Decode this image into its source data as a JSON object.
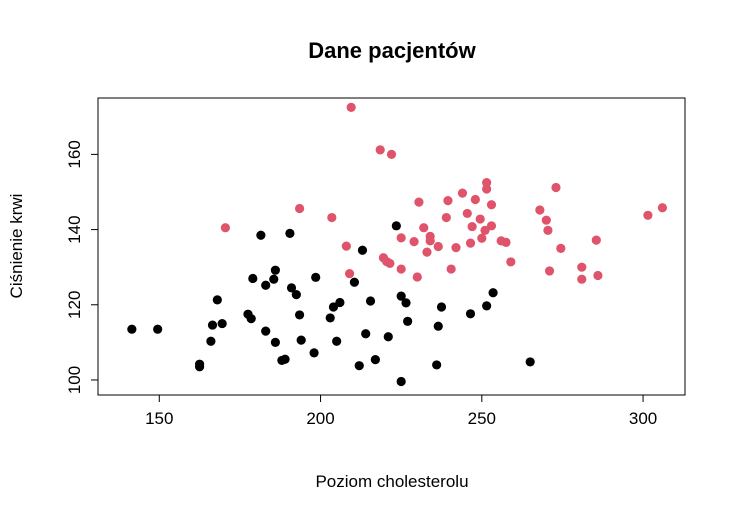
{
  "chart_data": {
    "type": "scatter",
    "title": "Dane pacjentów",
    "xlabel": "Poziom cholesterolu",
    "ylabel": "Ciśnienie krwi",
    "xlim": [
      131,
      313
    ],
    "ylim": [
      96,
      175
    ],
    "xticks": [
      150,
      200,
      250,
      300
    ],
    "yticks": [
      100,
      120,
      140,
      160
    ],
    "grid": false,
    "legend": "none",
    "series": [
      {
        "color": "#000000",
        "points": [
          [
            141.5,
            113.5
          ],
          [
            149.5,
            113.5
          ],
          [
            162.5,
            103.5
          ],
          [
            162.5,
            104.2
          ],
          [
            166,
            110.3
          ],
          [
            166.5,
            114.6
          ],
          [
            168,
            121.3
          ],
          [
            169.5,
            115.0
          ],
          [
            177.5,
            117.5
          ],
          [
            178.5,
            116.3
          ],
          [
            179,
            127.0
          ],
          [
            181.5,
            138.5
          ],
          [
            183,
            125.2
          ],
          [
            183,
            113.0
          ],
          [
            185.5,
            126.8
          ],
          [
            186,
            129.2
          ],
          [
            186,
            110.0
          ],
          [
            188,
            105.2
          ],
          [
            189,
            105.5
          ],
          [
            190.5,
            139.0
          ],
          [
            191,
            124.5
          ],
          [
            192.5,
            122.7
          ],
          [
            193.5,
            117.3
          ],
          [
            194,
            110.6
          ],
          [
            198,
            107.2
          ],
          [
            198.5,
            127.3
          ],
          [
            203,
            116.5
          ],
          [
            204,
            119.4
          ],
          [
            205,
            110.3
          ],
          [
            206,
            120.6
          ],
          [
            210.5,
            126.0
          ],
          [
            212,
            103.8
          ],
          [
            213,
            134.5
          ],
          [
            214,
            112.3
          ],
          [
            215.5,
            121.0
          ],
          [
            217,
            105.4
          ],
          [
            221,
            111.5
          ],
          [
            223.5,
            141.0
          ],
          [
            225,
            122.3
          ],
          [
            225,
            99.6
          ],
          [
            226.5,
            120.5
          ],
          [
            227,
            115.6
          ],
          [
            236,
            104.0
          ],
          [
            236.5,
            114.3
          ],
          [
            237.5,
            119.4
          ],
          [
            246.5,
            117.6
          ],
          [
            251.5,
            119.7
          ],
          [
            253.5,
            123.2
          ],
          [
            265,
            104.8
          ]
        ]
      },
      {
        "color": "#DF536B",
        "points": [
          [
            170.5,
            140.5
          ],
          [
            193.5,
            145.6
          ],
          [
            203.5,
            143.2
          ],
          [
            208,
            135.6
          ],
          [
            209,
            128.3
          ],
          [
            209.5,
            172.5
          ],
          [
            218.5,
            161.2
          ],
          [
            219.5,
            132.5
          ],
          [
            220.5,
            131.5
          ],
          [
            221.5,
            131.0
          ],
          [
            222,
            160.0
          ],
          [
            225,
            137.8
          ],
          [
            225,
            129.5
          ],
          [
            229,
            136.8
          ],
          [
            230,
            127.4
          ],
          [
            230.5,
            147.3
          ],
          [
            232,
            140.5
          ],
          [
            233,
            134.0
          ],
          [
            234,
            138.2
          ],
          [
            234,
            137.0
          ],
          [
            236.5,
            135.5
          ],
          [
            239,
            143.2
          ],
          [
            239.5,
            147.7
          ],
          [
            240.5,
            129.5
          ],
          [
            242,
            135.2
          ],
          [
            244,
            149.7
          ],
          [
            245.5,
            144.3
          ],
          [
            246.5,
            136.4
          ],
          [
            247,
            140.8
          ],
          [
            248,
            148.0
          ],
          [
            249.5,
            142.8
          ],
          [
            250,
            137.7
          ],
          [
            251,
            139.8
          ],
          [
            251.5,
            150.8
          ],
          [
            251.5,
            152.5
          ],
          [
            253,
            146.6
          ],
          [
            253,
            141.0
          ],
          [
            256,
            137.0
          ],
          [
            257.5,
            136.6
          ],
          [
            259,
            131.4
          ],
          [
            268,
            145.2
          ],
          [
            270,
            142.5
          ],
          [
            270.5,
            139.8
          ],
          [
            271,
            129.0
          ],
          [
            273,
            151.2
          ],
          [
            274.5,
            135.0
          ],
          [
            281,
            130.0
          ],
          [
            281,
            126.8
          ],
          [
            285.5,
            137.2
          ],
          [
            286,
            127.8
          ],
          [
            301.5,
            143.8
          ],
          [
            306,
            145.8
          ]
        ]
      }
    ]
  }
}
